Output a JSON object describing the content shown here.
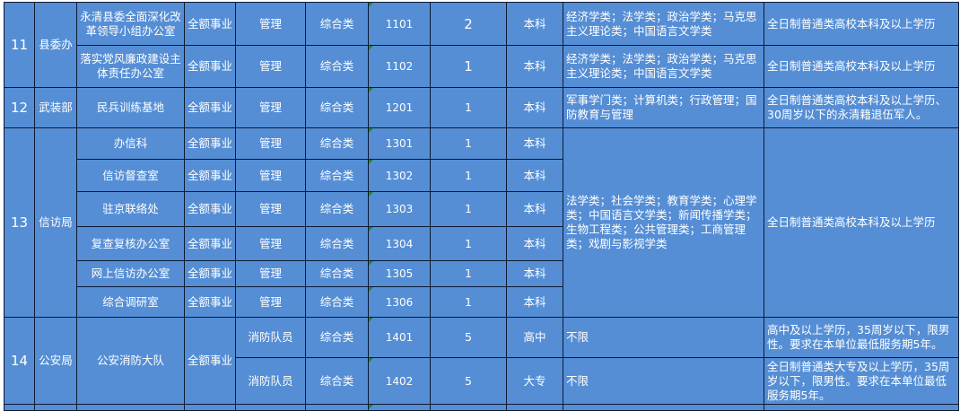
{
  "rows": {
    "g11": {
      "no": "11",
      "dept": "县委办",
      "r1": {
        "unit": "永清县委全面深化改革领导小组办公室",
        "type": "全额事业",
        "position": "管理",
        "category": "综合类",
        "code": "1101",
        "count": "2",
        "education": "本科",
        "major": "经济学类；法学类；政治学类；马克思主义理论类；中国语言文学类",
        "requirement": "全日制普通类高校本科及以上学历"
      },
      "r2": {
        "unit": "落实党风廉政建设主体责任办公室",
        "type": "全额事业",
        "position": "管理",
        "category": "综合类",
        "code": "1102",
        "count": "1",
        "education": "本科",
        "major": "经济学类；法学类；政治学类；马克思主义理论类；中国语言文学类",
        "requirement": "全日制普通类高校本科及以上学历"
      }
    },
    "g12": {
      "no": "12",
      "dept": "武装部",
      "r1": {
        "unit": "民兵训练基地",
        "type": "全额事业",
        "position": "管理",
        "category": "综合类",
        "code": "1201",
        "count": "1",
        "education": "本科",
        "major": "军事学门类；计算机类；行政管理；国防教育与管理",
        "requirement": "全日制普通类高校本科及以上学历、30周岁以下的永清籍退伍军人。"
      }
    },
    "g13": {
      "no": "13",
      "dept": "信访局",
      "major": "法学类；社会学类；教育学类；心理学类；中国语言文学类；新闻传播学类；生物工程类；公共管理类；工商管理类；戏剧与影视学类",
      "requirement": "全日制普通类高校本科及以上学历",
      "r1": {
        "unit": "办信科",
        "type": "全额事业",
        "position": "管理",
        "category": "综合类",
        "code": "1301",
        "count": "1",
        "education": "本科"
      },
      "r2": {
        "unit": "信访督查室",
        "type": "全额事业",
        "position": "管理",
        "category": "综合类",
        "code": "1302",
        "count": "1",
        "education": "本科"
      },
      "r3": {
        "unit": "驻京联络处",
        "type": "全额事业",
        "position": "管理",
        "category": "综合类",
        "code": "1303",
        "count": "1",
        "education": "本科"
      },
      "r4": {
        "unit": "复查复核办公室",
        "type": "全额事业",
        "position": "管理",
        "category": "综合类",
        "code": "1304",
        "count": "1",
        "education": "本科"
      },
      "r5": {
        "unit": "网上信访办公室",
        "type": "全额事业",
        "position": "管理",
        "category": "综合类",
        "code": "1305",
        "count": "1",
        "education": "本科"
      },
      "r6": {
        "unit": "综合调研室",
        "type": "全额事业",
        "position": "管理",
        "category": "综合类",
        "code": "1306",
        "count": "1",
        "education": "本科"
      }
    },
    "g14": {
      "no": "14",
      "dept": "公安局",
      "unit": "公安消防大队",
      "type": "全额事业",
      "r1": {
        "position": "消防队员",
        "category": "综合类",
        "code": "1401",
        "count": "5",
        "education": "高中",
        "major": "不限",
        "requirement": "高中及以上学历，35周岁以下，限男性。要求在本单位最低服务期5年。"
      },
      "r2": {
        "position": "消防队员",
        "category": "综合类",
        "code": "1402",
        "count": "5",
        "education": "大专",
        "major": "不限",
        "requirement": "全日制普通类大专及以上学历，35周岁以下，限男性。要求在本单位最低服务期5年。"
      }
    }
  },
  "colors": {
    "cell": "#558ed5",
    "grid": "#0d1a33",
    "text": "#ffffff"
  }
}
